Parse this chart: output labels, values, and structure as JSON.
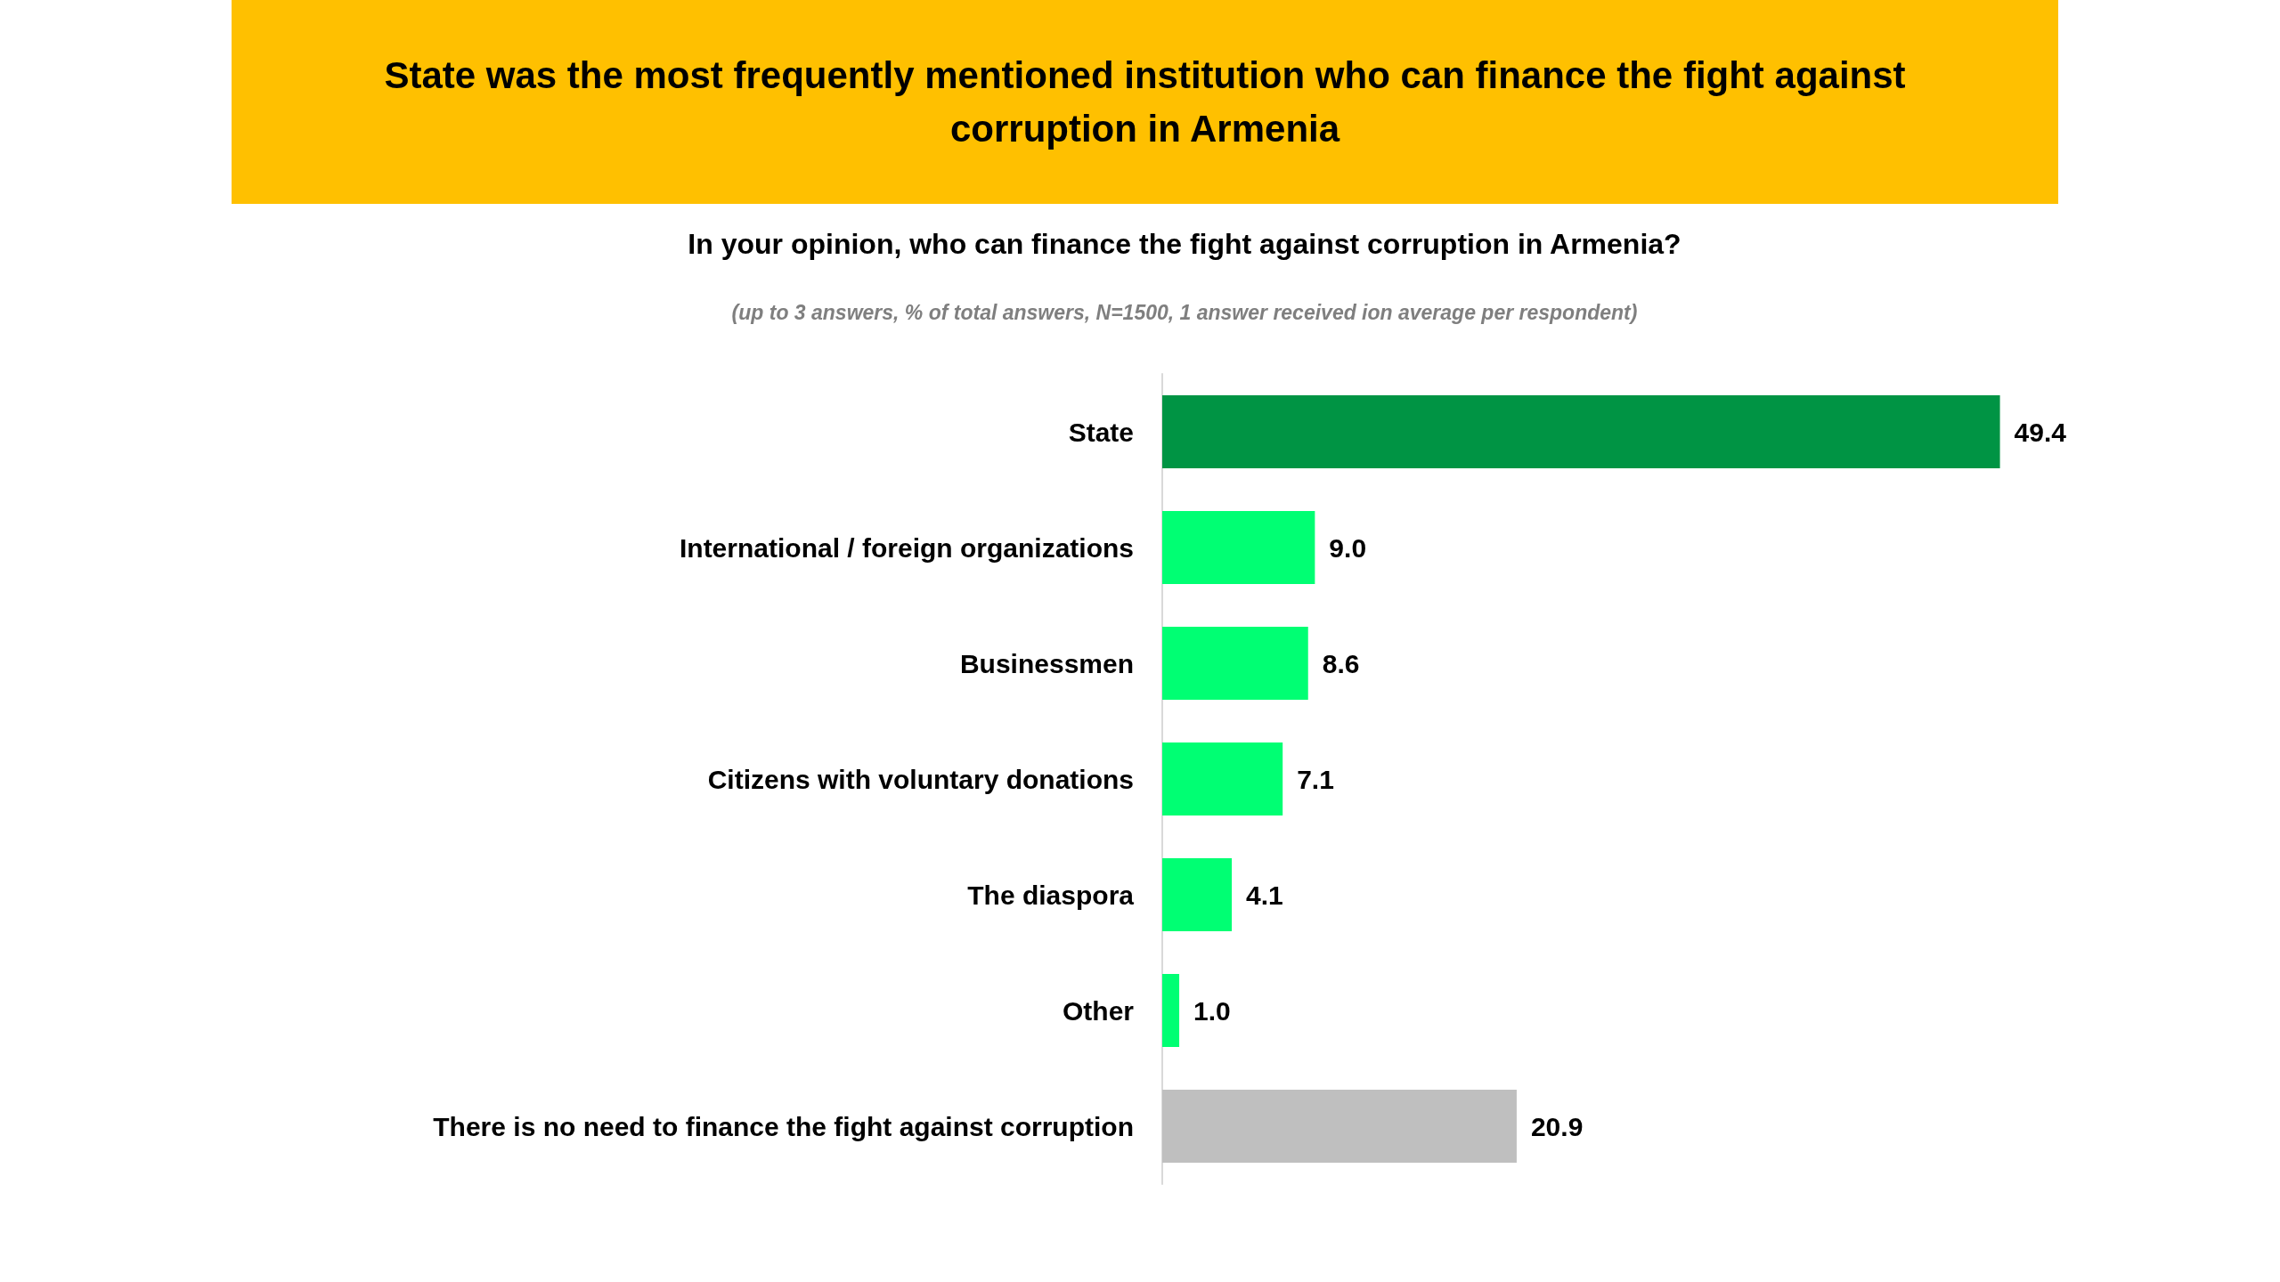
{
  "chart_data": {
    "type": "bar",
    "orientation": "horizontal",
    "title": "State was the most frequently mentioned institution who can finance the fight against corruption in Armenia",
    "subtitle": "In your opinion, who can finance the fight against corruption in Armenia?",
    "annotations": [
      "(up to 3 answers, % of total answers, N=1500, 1 answer received ion average  per respondent)"
    ],
    "categories": [
      "State",
      "International / foreign organizations",
      "Businessmen",
      "Citizens with voluntary donations",
      "The diaspora",
      "Other",
      "There is no need to finance the fight against corruption"
    ],
    "values": [
      49.4,
      9.0,
      8.6,
      7.1,
      4.1,
      1.0,
      20.9
    ],
    "value_labels": [
      "49.4",
      "9.0",
      "8.6",
      "7.1",
      "4.1",
      "1.0",
      "20.9"
    ],
    "colors": [
      "#009444",
      "#00ff73",
      "#00ff73",
      "#00ff73",
      "#00ff73",
      "#00ff73",
      "#bfbfbf"
    ]
  }
}
